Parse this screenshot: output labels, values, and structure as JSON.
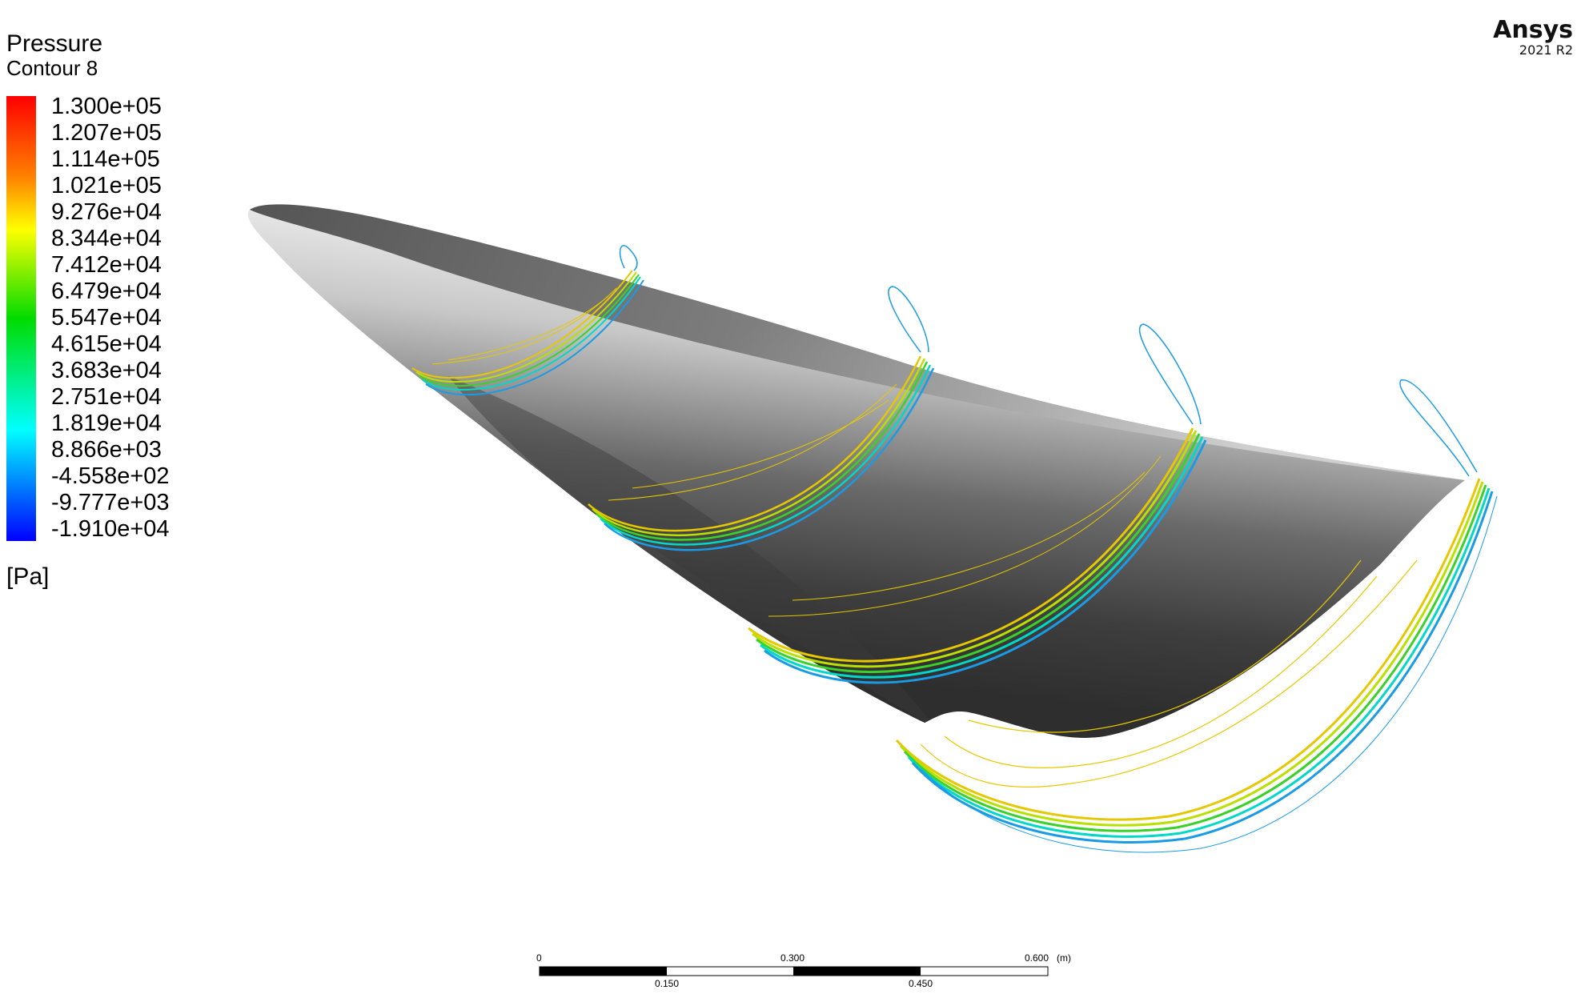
{
  "legend": {
    "title": "Pressure",
    "subtitle": "Contour 8",
    "unit": "[Pa]",
    "levels": [
      "1.300e+05",
      "1.207e+05",
      "1.114e+05",
      "1.021e+05",
      "9.276e+04",
      "8.344e+04",
      "7.412e+04",
      "6.479e+04",
      "5.547e+04",
      "4.615e+04",
      "3.683e+04",
      "2.751e+04",
      "1.819e+04",
      "8.866e+03",
      "-4.558e+02",
      "-9.777e+03",
      "-1.910e+04"
    ],
    "colors": [
      "#ff0000",
      "#ff7f00",
      "#ffff00",
      "#00e000",
      "#00ffff",
      "#0000ff"
    ]
  },
  "brand": {
    "name": "Ansys",
    "version": "2021 R2"
  },
  "scale_bar": {
    "top_labels": [
      "0",
      "0.300",
      "0.600"
    ],
    "unit": "(m)",
    "bottom_labels": [
      "0.150",
      "0.450"
    ]
  },
  "scene": {
    "body_color_dark": "#3a3a3a",
    "body_color_light": "#e8e8e8",
    "contour_colors": [
      "#e6c800",
      "#b8e000",
      "#3ad22a",
      "#00d8c8",
      "#1a9be6"
    ]
  }
}
